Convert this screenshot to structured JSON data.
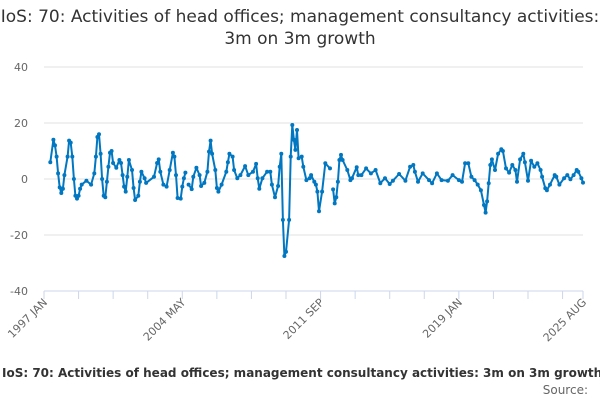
{
  "chart_data": {
    "type": "line",
    "title": "IoS: 70: Activities of head offices; management consultancy activities: 3m on 3m growth",
    "ylim": [
      -40,
      40
    ],
    "yticks": [
      40,
      20,
      0,
      -20,
      -40
    ],
    "xrange": [
      "1997-01",
      "2025-08"
    ],
    "xtick_labels": [
      "1997 JAN",
      "2004 MAY",
      "2011 SEP",
      "2019 JAN",
      "2025 AUG"
    ],
    "grid": "horizontal",
    "legend": "none",
    "color": "#0077c0",
    "points": [
      [
        "1997-05",
        6
      ],
      [
        "1997-07",
        14
      ],
      [
        "1997-08",
        12
      ],
      [
        "1997-09",
        8
      ],
      [
        "1997-10",
        2
      ],
      [
        "1997-11",
        -3
      ],
      [
        "1997-12",
        -5
      ],
      [
        "1998-01",
        -3.5
      ],
      [
        "1998-02",
        1.4
      ],
      [
        "1998-04",
        8
      ],
      [
        "1998-05",
        13.7
      ],
      [
        "1998-06",
        13
      ],
      [
        "1998-07",
        8
      ],
      [
        "1998-08",
        0
      ],
      [
        "1998-09",
        -6
      ],
      [
        "1998-10",
        -7
      ],
      [
        "1998-11",
        -6
      ],
      [
        "1998-12",
        -3.5
      ],
      [
        "1999-01",
        -2
      ],
      [
        "1999-04",
        -0.6
      ],
      [
        "1999-07",
        -2
      ],
      [
        "1999-09",
        2
      ],
      [
        "1999-10",
        8
      ],
      [
        "1999-11",
        15
      ],
      [
        "1999-12",
        16
      ],
      [
        "2000-01",
        9
      ],
      [
        "2000-02",
        0
      ],
      [
        "2000-03",
        -6
      ],
      [
        "2000-04",
        -6.5
      ],
      [
        "2000-05",
        -1
      ],
      [
        "2000-06",
        4.4
      ],
      [
        "2000-07",
        9.4
      ],
      [
        "2000-08",
        10
      ],
      [
        "2000-09",
        5.7
      ],
      [
        "2000-11",
        4
      ],
      [
        "2001-01",
        6.8
      ],
      [
        "2001-02",
        5.7
      ],
      [
        "2001-03",
        1.4
      ],
      [
        "2001-04",
        -2.7
      ],
      [
        "2001-05",
        -4.5
      ],
      [
        "2001-06",
        0.8
      ],
      [
        "2001-07",
        6.8
      ],
      [
        "2001-09",
        3.2
      ],
      [
        "2001-10",
        -3.2
      ],
      [
        "2001-11",
        -7.5
      ],
      [
        "2002-01",
        -6
      ],
      [
        "2002-02",
        -1
      ],
      [
        "2002-03",
        2.6
      ],
      [
        "2002-05",
        0.3
      ],
      [
        "2002-06",
        -1.4
      ],
      [
        "2002-11",
        0.8
      ],
      [
        "2003-01",
        5.7
      ],
      [
        "2003-02",
        7
      ],
      [
        "2003-03",
        2.6
      ],
      [
        "2003-05",
        -2
      ],
      [
        "2003-07",
        -2.7
      ],
      [
        "2003-09",
        3.2
      ],
      [
        "2003-11",
        9.4
      ],
      [
        "2003-12",
        8
      ],
      [
        "2004-01",
        1.4
      ],
      [
        "2004-02",
        -6.8
      ],
      [
        "2004-04",
        -7
      ],
      [
        "2004-05",
        -2.7
      ],
      [
        "2004-06",
        0.3
      ],
      [
        "2004-07",
        2.3
      ],
      [
        "2004-08",
        null
      ],
      [
        "2004-09",
        -2
      ],
      [
        "2004-11",
        -3.6
      ],
      [
        "2004-12",
        0.8
      ],
      [
        "2005-02",
        4
      ],
      [
        "2005-04",
        1.4
      ],
      [
        "2005-05",
        -2.5
      ],
      [
        "2005-07",
        -1.4
      ],
      [
        "2005-09",
        2.6
      ],
      [
        "2005-10",
        9.8
      ],
      [
        "2005-11",
        13.7
      ],
      [
        "2005-12",
        9
      ],
      [
        "2006-02",
        3.2
      ],
      [
        "2006-03",
        -3.2
      ],
      [
        "2006-04",
        -4.5
      ],
      [
        "2006-06",
        -2
      ],
      [
        "2006-09",
        2.6
      ],
      [
        "2006-10",
        6
      ],
      [
        "2006-11",
        9
      ],
      [
        "2007-01",
        8
      ],
      [
        "2007-02",
        3.2
      ],
      [
        "2007-04",
        0.3
      ],
      [
        "2007-06",
        1.4
      ],
      [
        "2007-09",
        4.6
      ],
      [
        "2007-11",
        1.4
      ],
      [
        "2008-02",
        2.6
      ],
      [
        "2008-04",
        5.4
      ],
      [
        "2008-05",
        0.3
      ],
      [
        "2008-06",
        -3.5
      ],
      [
        "2008-08",
        0.3
      ],
      [
        "2008-11",
        2.6
      ],
      [
        "2009-01",
        2.6
      ],
      [
        "2009-02",
        -2
      ],
      [
        "2009-04",
        -6.5
      ],
      [
        "2009-06",
        -2.5
      ],
      [
        "2009-07",
        4.4
      ],
      [
        "2009-08",
        9
      ],
      [
        "2009-09",
        -14.6
      ],
      [
        "2009-10",
        -27.5
      ],
      [
        "2009-11",
        -26
      ],
      [
        "2010-01",
        -14.6
      ],
      [
        "2010-02",
        8
      ],
      [
        "2010-03",
        19.3
      ],
      [
        "2010-04",
        14
      ],
      [
        "2010-05",
        10.4
      ],
      [
        "2010-06",
        17.5
      ],
      [
        "2010-07",
        7.4
      ],
      [
        "2010-09",
        8
      ],
      [
        "2010-10",
        4.4
      ],
      [
        "2010-12",
        -0.4
      ],
      [
        "2011-02",
        0.3
      ],
      [
        "2011-03",
        1.4
      ],
      [
        "2011-05",
        -1
      ],
      [
        "2011-06",
        -2
      ],
      [
        "2011-07",
        -4.5
      ],
      [
        "2011-08",
        -11.5
      ],
      [
        "2011-10",
        -4.5
      ],
      [
        "2011-12",
        5.6
      ],
      [
        "2012-03",
        3.8
      ],
      [
        "2012-04",
        null
      ],
      [
        "2012-05",
        -3.7
      ],
      [
        "2012-06",
        -8.7
      ],
      [
        "2012-07",
        -6.5
      ],
      [
        "2012-08",
        -1
      ],
      [
        "2012-09",
        6.8
      ],
      [
        "2012-10",
        8.6
      ],
      [
        "2012-11",
        6.8
      ],
      [
        "2013-02",
        3.2
      ],
      [
        "2013-04",
        -0.4
      ],
      [
        "2013-05",
        0.3
      ],
      [
        "2013-08",
        4.2
      ],
      [
        "2013-09",
        1.4
      ],
      [
        "2013-11",
        1.4
      ],
      [
        "2014-02",
        3.8
      ],
      [
        "2014-05",
        2
      ],
      [
        "2014-08",
        3.2
      ],
      [
        "2014-11",
        -1.5
      ],
      [
        "2015-02",
        0.3
      ],
      [
        "2015-05",
        -1.8
      ],
      [
        "2015-07",
        -0.6
      ],
      [
        "2015-11",
        1.8
      ],
      [
        "2016-03",
        -0.6
      ],
      [
        "2016-06",
        4.4
      ],
      [
        "2016-08",
        5
      ],
      [
        "2016-09",
        2.6
      ],
      [
        "2016-11",
        -1
      ],
      [
        "2017-02",
        2
      ],
      [
        "2017-06",
        -0.4
      ],
      [
        "2017-08",
        -1.5
      ],
      [
        "2017-11",
        2
      ],
      [
        "2018-02",
        -0.4
      ],
      [
        "2018-06",
        -0.6
      ],
      [
        "2018-09",
        1.4
      ],
      [
        "2019-01",
        -0.4
      ],
      [
        "2019-03",
        -1
      ],
      [
        "2019-05",
        5.6
      ],
      [
        "2019-07",
        5.6
      ],
      [
        "2019-09",
        0.8
      ],
      [
        "2019-11",
        -0.4
      ],
      [
        "2020-01",
        -2
      ],
      [
        "2020-03",
        -4
      ],
      [
        "2020-05",
        -9.3
      ],
      [
        "2020-06",
        -12
      ],
      [
        "2020-07",
        -8
      ],
      [
        "2020-08",
        -1.5
      ],
      [
        "2020-09",
        5
      ],
      [
        "2020-10",
        7
      ],
      [
        "2020-12",
        3.2
      ],
      [
        "2021-02",
        9
      ],
      [
        "2021-04",
        10.6
      ],
      [
        "2021-05",
        10
      ],
      [
        "2021-07",
        3.8
      ],
      [
        "2021-09",
        2.3
      ],
      [
        "2021-11",
        5
      ],
      [
        "2022-01",
        3.2
      ],
      [
        "2022-02",
        -1
      ],
      [
        "2022-04",
        7
      ],
      [
        "2022-06",
        9
      ],
      [
        "2022-07",
        6
      ],
      [
        "2022-09",
        -0.6
      ],
      [
        "2022-11",
        6.5
      ],
      [
        "2023-01",
        4.4
      ],
      [
        "2023-03",
        5.6
      ],
      [
        "2023-05",
        3.2
      ],
      [
        "2023-06",
        0.8
      ],
      [
        "2023-08",
        -3.3
      ],
      [
        "2023-09",
        -4
      ],
      [
        "2023-11",
        -2
      ],
      [
        "2024-02",
        1.4
      ],
      [
        "2024-03",
        0.8
      ],
      [
        "2024-05",
        -2
      ],
      [
        "2024-08",
        0.3
      ],
      [
        "2024-10",
        1.4
      ],
      [
        "2024-12",
        -0.1
      ],
      [
        "2025-02",
        1.4
      ],
      [
        "2025-04",
        3.2
      ],
      [
        "2025-05",
        2.6
      ],
      [
        "2025-07",
        0.3
      ],
      [
        "2025-08",
        -1.3
      ]
    ]
  },
  "caption": "IoS: 70: Activities of head offices; management consultancy activities: 3m on 3m growth",
  "source_label": "Source:"
}
